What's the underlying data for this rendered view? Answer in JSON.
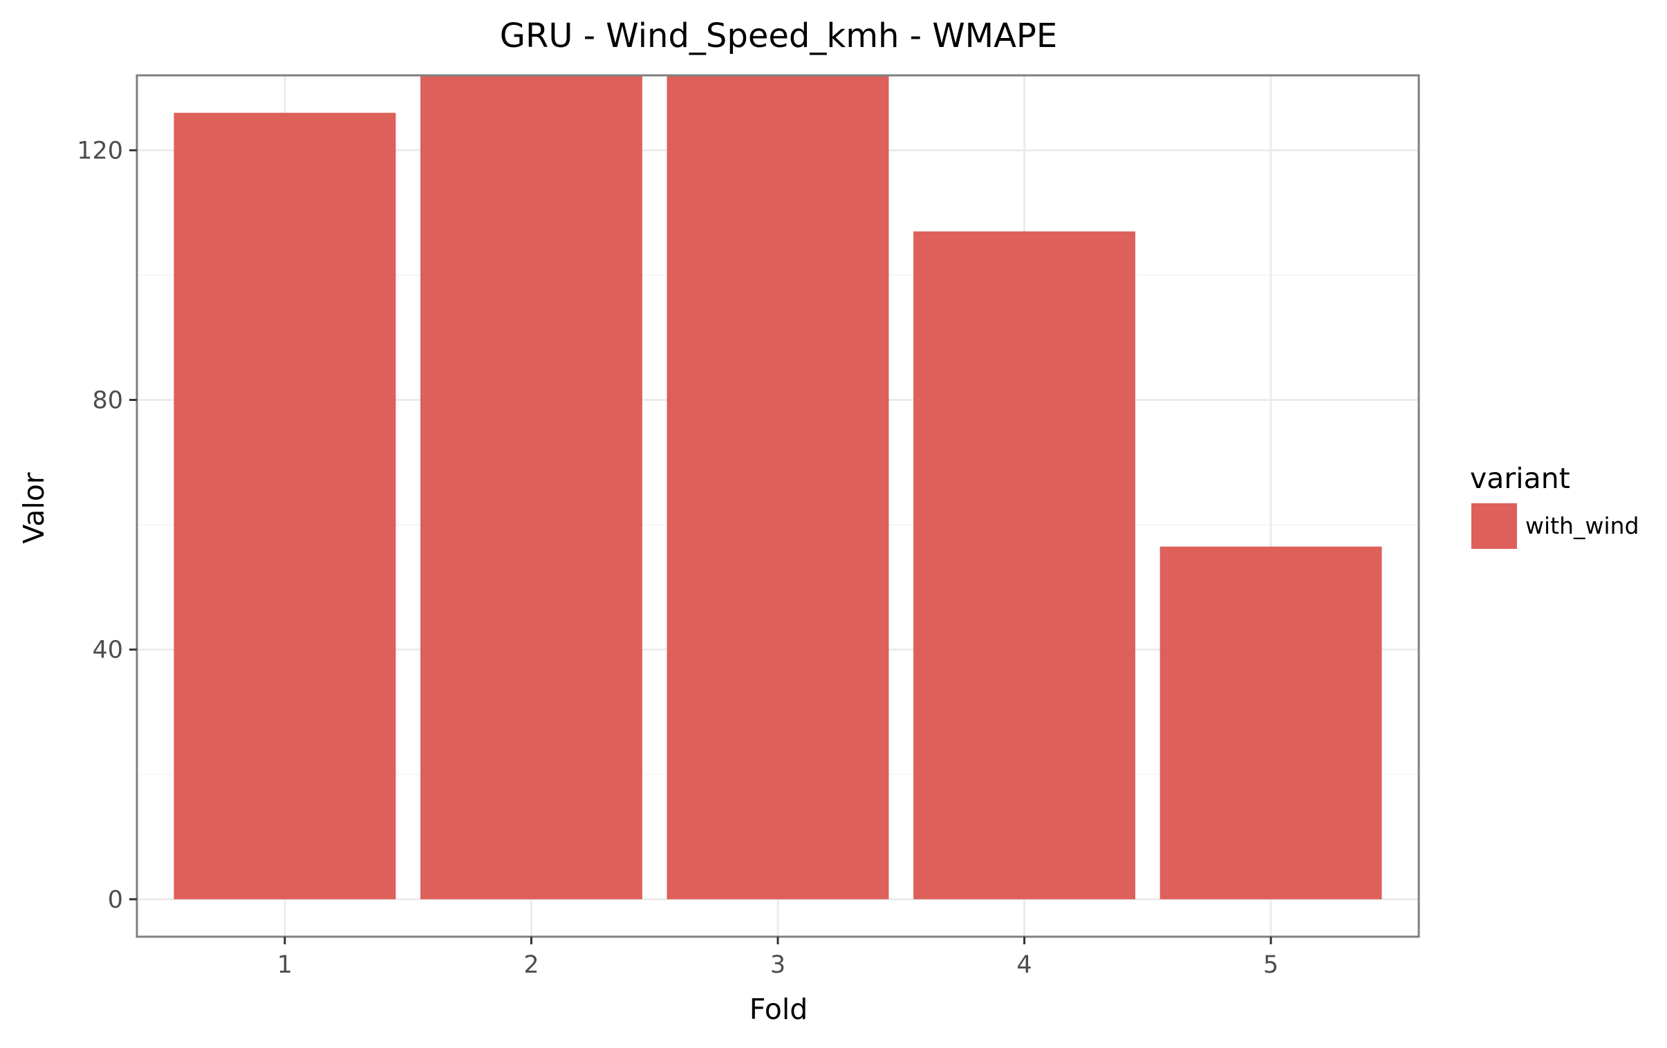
{
  "chart_data": {
    "type": "bar",
    "title": "GRU - Wind_Speed_kmh - WMAPE",
    "xlabel": "Fold",
    "ylabel": "Valor",
    "categories": [
      "1",
      "2",
      "3",
      "4",
      "5"
    ],
    "series": [
      {
        "name": "with_wind",
        "color": "#dd605a",
        "values": [
          126,
          138,
          136,
          107,
          56.5
        ]
      }
    ],
    "ylim": [
      -6,
      132
    ],
    "y_ticks": [
      0,
      40,
      80,
      120
    ],
    "y_tick_labels": [
      "0",
      "40",
      "80",
      "120"
    ],
    "grid": true,
    "legend": {
      "title": "variant",
      "position": "right"
    },
    "colors": {
      "panel_border": "#7f7f7f",
      "grid_major": "#ebebeb",
      "grid_minor": "#f5f5f5",
      "tick": "#333333"
    }
  }
}
